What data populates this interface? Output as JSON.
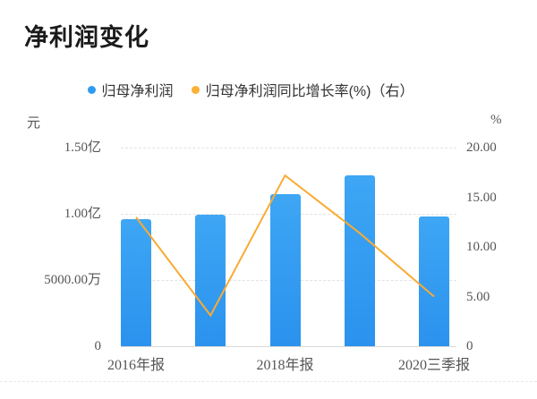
{
  "title": "净利润变化",
  "legend": [
    {
      "label": "归母净利润",
      "color": "#2f9bf0"
    },
    {
      "label": "归母净利润同比增长率(%)（右）",
      "color": "#fbb036"
    }
  ],
  "left_axis": {
    "unit": "元",
    "ticks": [
      "1.50亿",
      "1.00亿",
      "5000.00万",
      "0"
    ]
  },
  "right_axis": {
    "unit": "%",
    "ticks": [
      "20.00",
      "15.00",
      "10.00",
      "5.00",
      "0"
    ]
  },
  "x_axis": {
    "ticks": [
      "2016年报",
      "2018年报",
      "2020三季报"
    ]
  },
  "chart_data": {
    "type": "combo",
    "categories_visible": [
      "2016年报",
      "2018年报",
      "2020三季报"
    ],
    "x_tick_positions": "labels shown under bars 1, 3 and 5 of 5 bars",
    "series": [
      {
        "name": "归母净利润",
        "type": "bar",
        "axis": "left",
        "unit": "元",
        "color": "#2f9bf0",
        "values": [
          96000000,
          99000000,
          115000000,
          129000000,
          98000000
        ]
      },
      {
        "name": "归母净利润同比增长率(%)（右）",
        "type": "line",
        "axis": "right",
        "unit": "%",
        "color": "#f9ab33",
        "values": [
          13.0,
          3.1,
          17.2,
          11.4,
          5.0
        ]
      }
    ],
    "left_axis_range": [
      0,
      150000000
    ],
    "right_axis_range": [
      0,
      20
    ],
    "grid": "horizontal dashed gridlines at left-axis ticks",
    "legend_position": "top-center"
  },
  "colors": {
    "bar": "#2f9bf0",
    "line": "#f9ab33",
    "title_text": "#1b1b1b",
    "tick_text": "#555555",
    "legend_text": "#333333",
    "gridline": "#e2e2e2",
    "axis_line": "#d9d9d9",
    "background": "#ffffff"
  }
}
